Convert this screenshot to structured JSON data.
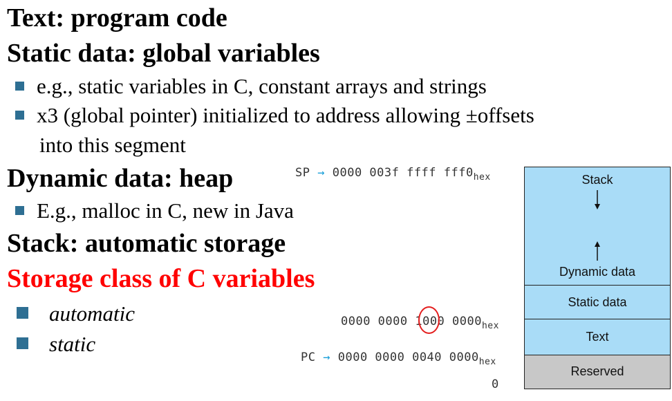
{
  "headings": {
    "text": "Text: program code",
    "static": "Static data: global variables",
    "dynamic": "Dynamic data: heap",
    "stack": "Stack: automatic storage",
    "storage_class": "Storage class of C variables"
  },
  "bullets": {
    "static_1": "e.g., static variables in C, constant arrays and strings",
    "static_2": "x3 (global pointer) initialized to address allowing ±offsets",
    "static_2_cont": "into this segment",
    "dynamic_1": "E.g., malloc in C, new in Java",
    "storage_1": "automatic",
    "storage_2": "static"
  },
  "addresses": {
    "sp_label": "SP",
    "sp_value": "0000 003f ffff fff0",
    "static_value": "0000 0000 1000 0000",
    "pc_label": "PC",
    "pc_value": "0000 0000 0040 0000",
    "hex_suffix": "hex",
    "zero": "0"
  },
  "memory_layout": {
    "stack": "Stack",
    "dynamic": "Dynamic data",
    "static": "Static data",
    "text": "Text",
    "reserved": "Reserved"
  },
  "colors": {
    "segment_blue": "#a9dcf7",
    "segment_gray": "#c8c8c8",
    "bullet_square": "#2e6f93",
    "highlight_red": "#ff0000",
    "pointer_arrow": "#1a9fd9"
  }
}
